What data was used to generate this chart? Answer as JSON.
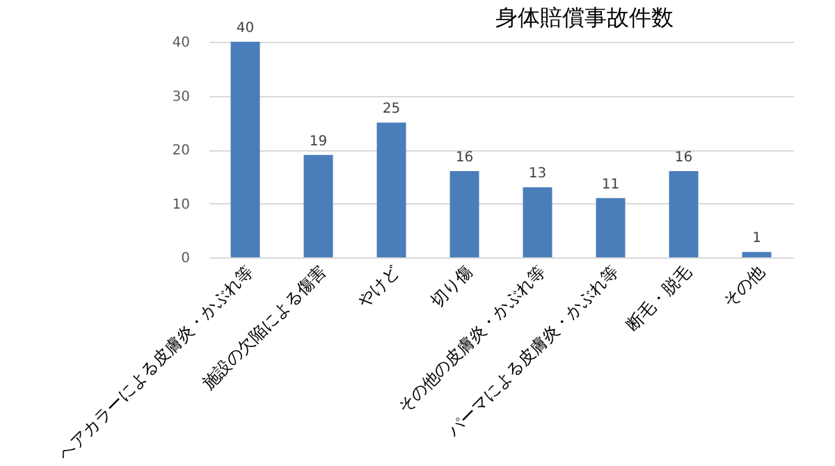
{
  "chart_data": {
    "type": "bar",
    "title": "身体賠償事故件数",
    "categories": [
      "ヘアカラーによる皮膚炎・かぶれ等",
      "施設の欠陥による傷害",
      "やけど",
      "切り傷",
      "その他の皮膚炎・かぶれ等",
      "パーマによる皮膚炎・かぶれ等",
      "断毛・脱毛",
      "その他"
    ],
    "values": [
      40,
      19,
      25,
      16,
      13,
      11,
      16,
      1
    ],
    "color": "#4a7ebb",
    "ylim": [
      0,
      40
    ],
    "yticks": [
      0,
      10,
      20,
      30,
      40
    ],
    "grid": "y",
    "data_labels": true
  }
}
